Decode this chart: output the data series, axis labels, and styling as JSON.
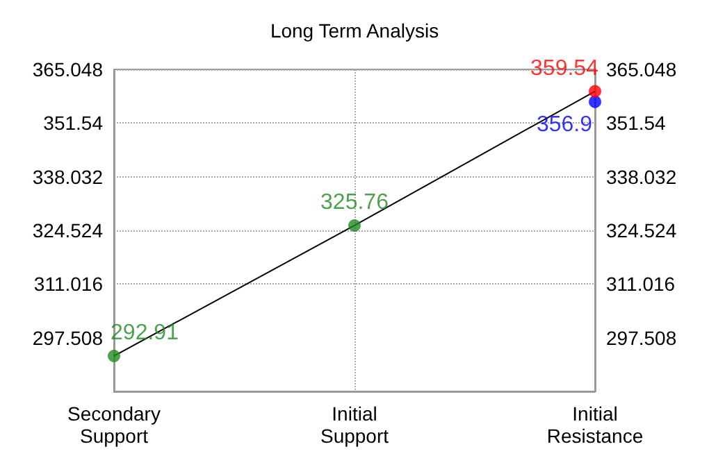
{
  "chart_data": {
    "type": "line",
    "title": "Long Term Analysis",
    "categories": [
      "Secondary\nSupport",
      "Initial\nSupport",
      "Initial\nResistance"
    ],
    "series": [
      {
        "color": "#000000",
        "values": [
          292.91,
          325.76,
          359.54
        ],
        "marker": "none",
        "data_labels": false
      },
      {
        "type": "scatter",
        "color": "#228b22",
        "values": [
          292.91,
          325.76,
          null
        ],
        "marker": "circle"
      },
      {
        "type": "scatter",
        "color": "#0000ff",
        "values": [
          null,
          null,
          356.9
        ],
        "marker": "circle"
      },
      {
        "type": "scatter",
        "color": "#ff0000",
        "values": [
          null,
          null,
          359.54
        ],
        "marker": "circle"
      }
    ],
    "data_labels": true,
    "grid": true,
    "ylim": [
      284,
      365.048
    ],
    "yticks": [
      297.508,
      311.016,
      324.524,
      338.032,
      351.54,
      365.048
    ],
    "y2lim": [
      284,
      365.048
    ],
    "y2ticks": [
      297.508,
      311.016,
      324.524,
      338.032,
      351.54,
      365.048
    ]
  }
}
